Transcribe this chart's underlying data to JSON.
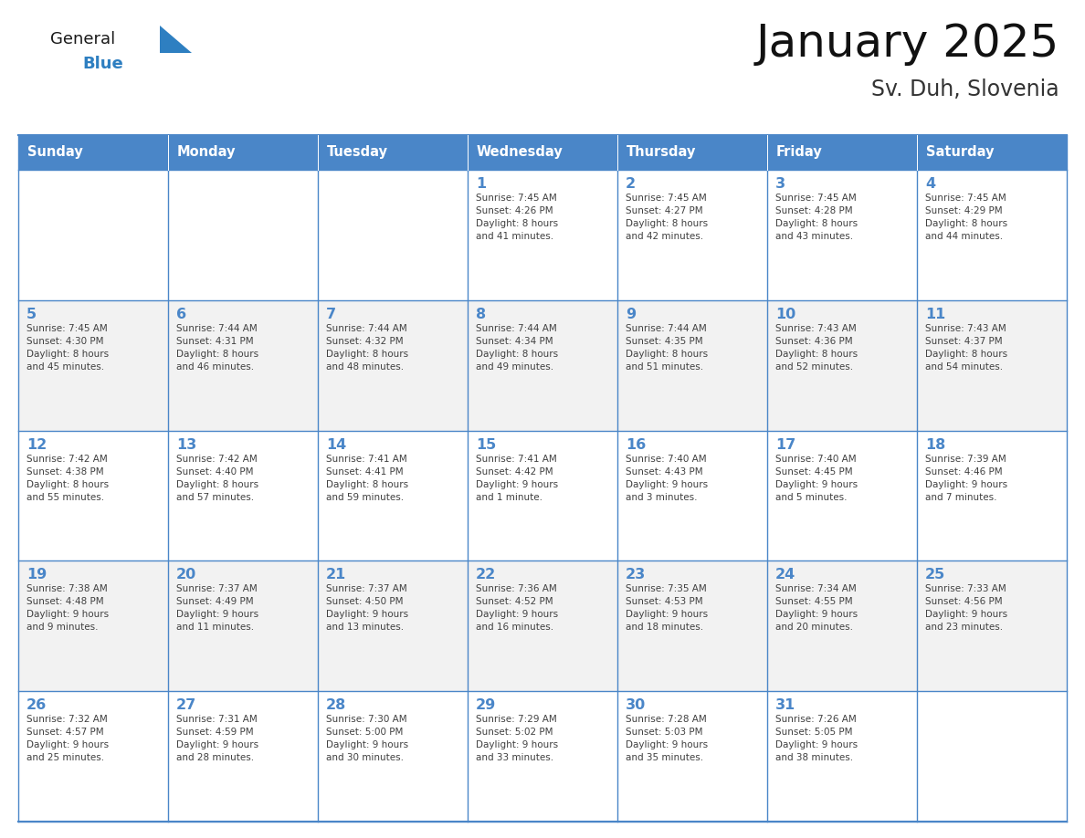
{
  "title": "January 2025",
  "subtitle": "Sv. Duh, Slovenia",
  "days_of_week": [
    "Sunday",
    "Monday",
    "Tuesday",
    "Wednesday",
    "Thursday",
    "Friday",
    "Saturday"
  ],
  "header_bg": "#4a86c8",
  "header_text": "#ffffff",
  "cell_bg_white": "#ffffff",
  "cell_bg_gray": "#f2f2f2",
  "border_color": "#4a86c8",
  "day_num_color": "#4a86c8",
  "text_color": "#404040",
  "logo_general_color": "#1a1a1a",
  "logo_blue_color": "#2e7fc1",
  "logo_triangle_color": "#2e7fc1",
  "calendar_data": [
    [
      {
        "day": null,
        "info": null
      },
      {
        "day": null,
        "info": null
      },
      {
        "day": null,
        "info": null
      },
      {
        "day": 1,
        "info": "Sunrise: 7:45 AM\nSunset: 4:26 PM\nDaylight: 8 hours\nand 41 minutes."
      },
      {
        "day": 2,
        "info": "Sunrise: 7:45 AM\nSunset: 4:27 PM\nDaylight: 8 hours\nand 42 minutes."
      },
      {
        "day": 3,
        "info": "Sunrise: 7:45 AM\nSunset: 4:28 PM\nDaylight: 8 hours\nand 43 minutes."
      },
      {
        "day": 4,
        "info": "Sunrise: 7:45 AM\nSunset: 4:29 PM\nDaylight: 8 hours\nand 44 minutes."
      }
    ],
    [
      {
        "day": 5,
        "info": "Sunrise: 7:45 AM\nSunset: 4:30 PM\nDaylight: 8 hours\nand 45 minutes."
      },
      {
        "day": 6,
        "info": "Sunrise: 7:44 AM\nSunset: 4:31 PM\nDaylight: 8 hours\nand 46 minutes."
      },
      {
        "day": 7,
        "info": "Sunrise: 7:44 AM\nSunset: 4:32 PM\nDaylight: 8 hours\nand 48 minutes."
      },
      {
        "day": 8,
        "info": "Sunrise: 7:44 AM\nSunset: 4:34 PM\nDaylight: 8 hours\nand 49 minutes."
      },
      {
        "day": 9,
        "info": "Sunrise: 7:44 AM\nSunset: 4:35 PM\nDaylight: 8 hours\nand 51 minutes."
      },
      {
        "day": 10,
        "info": "Sunrise: 7:43 AM\nSunset: 4:36 PM\nDaylight: 8 hours\nand 52 minutes."
      },
      {
        "day": 11,
        "info": "Sunrise: 7:43 AM\nSunset: 4:37 PM\nDaylight: 8 hours\nand 54 minutes."
      }
    ],
    [
      {
        "day": 12,
        "info": "Sunrise: 7:42 AM\nSunset: 4:38 PM\nDaylight: 8 hours\nand 55 minutes."
      },
      {
        "day": 13,
        "info": "Sunrise: 7:42 AM\nSunset: 4:40 PM\nDaylight: 8 hours\nand 57 minutes."
      },
      {
        "day": 14,
        "info": "Sunrise: 7:41 AM\nSunset: 4:41 PM\nDaylight: 8 hours\nand 59 minutes."
      },
      {
        "day": 15,
        "info": "Sunrise: 7:41 AM\nSunset: 4:42 PM\nDaylight: 9 hours\nand 1 minute."
      },
      {
        "day": 16,
        "info": "Sunrise: 7:40 AM\nSunset: 4:43 PM\nDaylight: 9 hours\nand 3 minutes."
      },
      {
        "day": 17,
        "info": "Sunrise: 7:40 AM\nSunset: 4:45 PM\nDaylight: 9 hours\nand 5 minutes."
      },
      {
        "day": 18,
        "info": "Sunrise: 7:39 AM\nSunset: 4:46 PM\nDaylight: 9 hours\nand 7 minutes."
      }
    ],
    [
      {
        "day": 19,
        "info": "Sunrise: 7:38 AM\nSunset: 4:48 PM\nDaylight: 9 hours\nand 9 minutes."
      },
      {
        "day": 20,
        "info": "Sunrise: 7:37 AM\nSunset: 4:49 PM\nDaylight: 9 hours\nand 11 minutes."
      },
      {
        "day": 21,
        "info": "Sunrise: 7:37 AM\nSunset: 4:50 PM\nDaylight: 9 hours\nand 13 minutes."
      },
      {
        "day": 22,
        "info": "Sunrise: 7:36 AM\nSunset: 4:52 PM\nDaylight: 9 hours\nand 16 minutes."
      },
      {
        "day": 23,
        "info": "Sunrise: 7:35 AM\nSunset: 4:53 PM\nDaylight: 9 hours\nand 18 minutes."
      },
      {
        "day": 24,
        "info": "Sunrise: 7:34 AM\nSunset: 4:55 PM\nDaylight: 9 hours\nand 20 minutes."
      },
      {
        "day": 25,
        "info": "Sunrise: 7:33 AM\nSunset: 4:56 PM\nDaylight: 9 hours\nand 23 minutes."
      }
    ],
    [
      {
        "day": 26,
        "info": "Sunrise: 7:32 AM\nSunset: 4:57 PM\nDaylight: 9 hours\nand 25 minutes."
      },
      {
        "day": 27,
        "info": "Sunrise: 7:31 AM\nSunset: 4:59 PM\nDaylight: 9 hours\nand 28 minutes."
      },
      {
        "day": 28,
        "info": "Sunrise: 7:30 AM\nSunset: 5:00 PM\nDaylight: 9 hours\nand 30 minutes."
      },
      {
        "day": 29,
        "info": "Sunrise: 7:29 AM\nSunset: 5:02 PM\nDaylight: 9 hours\nand 33 minutes."
      },
      {
        "day": 30,
        "info": "Sunrise: 7:28 AM\nSunset: 5:03 PM\nDaylight: 9 hours\nand 35 minutes."
      },
      {
        "day": 31,
        "info": "Sunrise: 7:26 AM\nSunset: 5:05 PM\nDaylight: 9 hours\nand 38 minutes."
      },
      {
        "day": null,
        "info": null
      }
    ]
  ]
}
